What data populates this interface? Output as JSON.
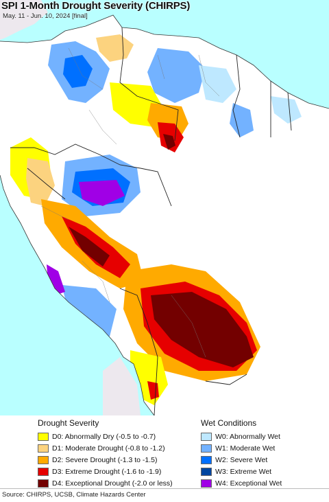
{
  "header": {
    "title": "SPI 1-Month Drought Severity (CHIRPS)",
    "subtitle": "May. 11 - Jun. 10, 2024 [final]"
  },
  "colors": {
    "ocean": "#b9ffff",
    "no_data_land": "#ede8ee",
    "normal": "#ffffff",
    "border": "#333333"
  },
  "legend": {
    "drought": {
      "heading": "Drought Severity",
      "items": [
        {
          "label": "D0: Abnormally Dry (-0.5 to -0.7)",
          "color": "#ffff00"
        },
        {
          "label": "D1: Moderate Drought (-0.8 to -1.2)",
          "color": "#fcd37f"
        },
        {
          "label": "D2: Severe Drought (-1.3 to -1.5)",
          "color": "#ffaa00"
        },
        {
          "label": "D3: Extreme Drought (-1.6 to -1.9)",
          "color": "#e60000"
        },
        {
          "label": "D4: Exceptional Drought (-2.0 or less)",
          "color": "#730000"
        }
      ]
    },
    "wet": {
      "heading": "Wet Conditions",
      "items": [
        {
          "label": "W0: Abnormally Wet",
          "color": "#bee8ff"
        },
        {
          "label": "W1: Moderate Wet",
          "color": "#73b2ff"
        },
        {
          "label": "W2: Severe Wet",
          "color": "#0070ff"
        },
        {
          "label": "W3: Extreme Wet",
          "color": "#0046a0"
        },
        {
          "label": "W4: Exceptional Wet",
          "color": "#a000e6"
        }
      ]
    }
  },
  "footer": {
    "source": "Source: CHIRPS, UCSB, Climate Hazards Center"
  }
}
